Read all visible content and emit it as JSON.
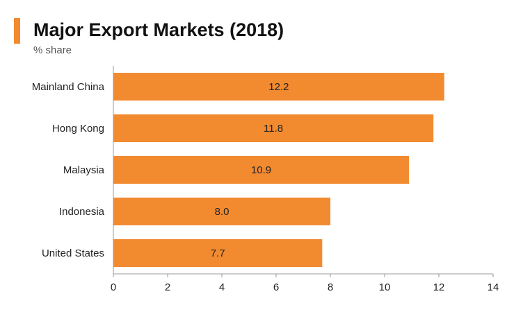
{
  "header": {
    "title": "Major Export Markets (2018)",
    "subtitle": "% share",
    "accent_color": "#f28a30"
  },
  "chart_data": {
    "type": "bar",
    "orientation": "horizontal",
    "title": "Major Export Markets (2018)",
    "subtitle": "% share",
    "categories": [
      "Mainland China",
      "Hong Kong",
      "Malaysia",
      "Indonesia",
      "United States"
    ],
    "values": [
      12.2,
      11.8,
      10.9,
      8.0,
      7.7
    ],
    "value_labels": [
      "12.2",
      "11.8",
      "10.9",
      "8.0",
      "7.7"
    ],
    "xlim": [
      0,
      14
    ],
    "xticks": [
      0,
      2,
      4,
      6,
      8,
      10,
      12,
      14
    ],
    "bar_color": "#f28a30",
    "grid": false,
    "legend": "none"
  }
}
